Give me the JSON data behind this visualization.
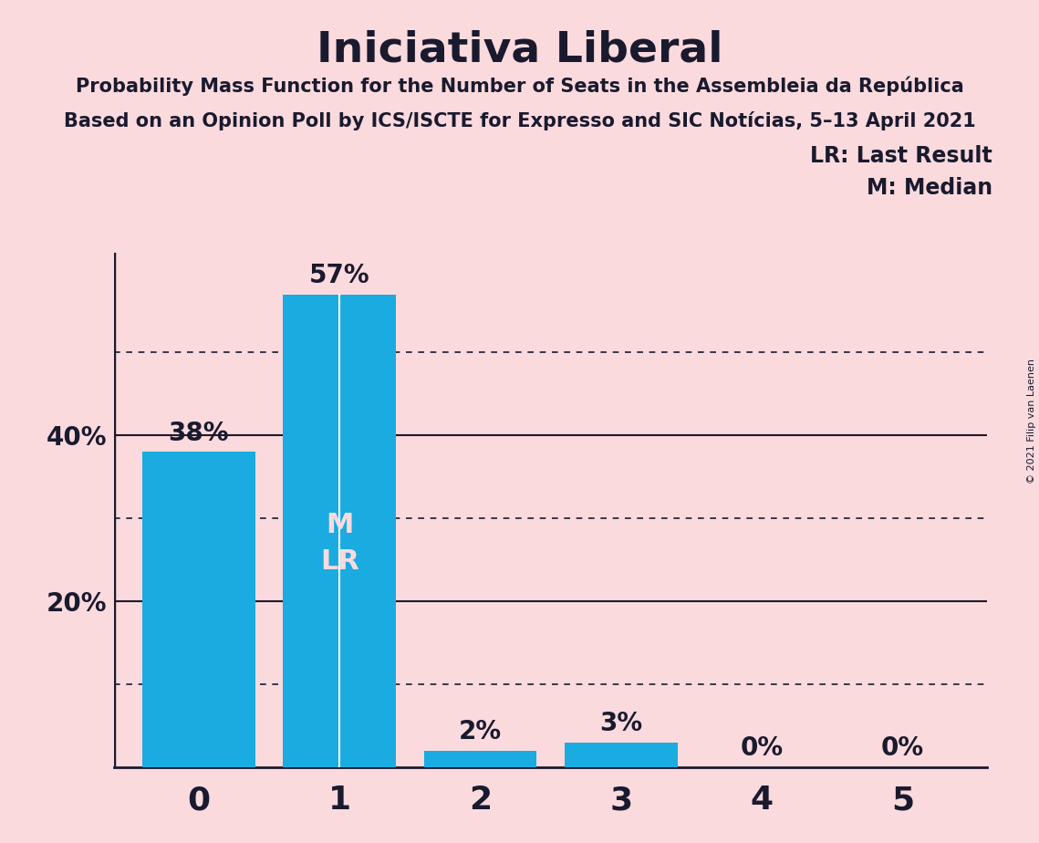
{
  "title": "Iniciativa Liberal",
  "subtitle1": "Probability Mass Function for the Number of Seats in the Assembleia da República",
  "subtitle2": "Based on an Opinion Poll by ICS/ISCTE for Expresso and SIC Notícias, 5–13 April 2021",
  "copyright": "© 2021 Filip van Laenen",
  "categories": [
    0,
    1,
    2,
    3,
    4,
    5
  ],
  "values": [
    0.38,
    0.57,
    0.02,
    0.03,
    0.0,
    0.0
  ],
  "labels": [
    "38%",
    "57%",
    "2%",
    "3%",
    "0%",
    "0%"
  ],
  "bar_color": "#1AABE0",
  "background_color": "#FADADD",
  "text_color": "#1A1A2E",
  "inside_label_color": "#FADADD",
  "median_seat": 1,
  "legend_lr": "LR: Last Result",
  "legend_m": "M: Median",
  "ylim": [
    0,
    0.62
  ],
  "solid_gridlines": [
    0.2,
    0.4
  ],
  "dotted_gridlines": [
    0.1,
    0.3,
    0.5
  ]
}
